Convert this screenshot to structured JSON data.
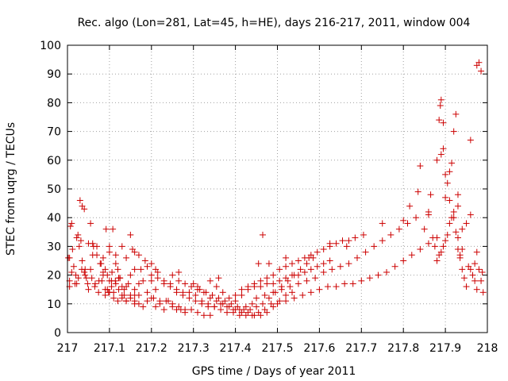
{
  "chart_data": {
    "type": "scatter",
    "title": "Rec. algo (Lon=281, Lat=45, h=HE), days 216-217, 2011, window 004",
    "xlabel": "GPS time / Days of year 2011",
    "ylabel": "STEC from uqrg / TECUs",
    "xlim": [
      217,
      218
    ],
    "ylim": [
      0,
      100
    ],
    "xticks": [
      217,
      217.1,
      217.2,
      217.3,
      217.4,
      217.5,
      217.6,
      217.7,
      217.8,
      217.9,
      218
    ],
    "xtick_labels": [
      "217",
      "217.1",
      "217.2",
      "217.3",
      "217.4",
      "217.5",
      "217.6",
      "217.7",
      "217.8",
      "217.9",
      "218"
    ],
    "yticks": [
      0,
      10,
      20,
      30,
      40,
      50,
      60,
      70,
      80,
      90,
      100
    ],
    "ytick_labels": [
      "0",
      "10",
      "20",
      "30",
      "40",
      "50",
      "60",
      "70",
      "80",
      "90",
      "100"
    ],
    "grid": true,
    "marker": "+",
    "point_color": "#cc0000",
    "series": [
      {
        "x": [
          217.005,
          217.005,
          217.005,
          217.007,
          217.01,
          217.012,
          217.015,
          217.02,
          217.022,
          217.025,
          217.03,
          217.032,
          217.035,
          217.04,
          217.042,
          217.045,
          217.05,
          217.055,
          217.06,
          217.065,
          217.07,
          217.075,
          217.022,
          217.028,
          217.035,
          217.04,
          217.048,
          217.055,
          217.062,
          217.07,
          217.078,
          217.085,
          217.092,
          217.1,
          217.108,
          217.115,
          217.122,
          217.13,
          217.14,
          217.15,
          217.16,
          217.17,
          217.002,
          217.01,
          217.018,
          217.026,
          217.034,
          217.042,
          217.05,
          217.058,
          217.066,
          217.074,
          217.082,
          217.09,
          217.098,
          217.106,
          217.114,
          217.122,
          217.13,
          217.14,
          217.15,
          217.16,
          217.08,
          217.085,
          217.09,
          217.095,
          217.1,
          217.105,
          217.11,
          217.115,
          217.12,
          217.125,
          217.13,
          217.135,
          217.14,
          217.15,
          217.16,
          217.17,
          217.18,
          217.19,
          217.2,
          217.21,
          217.09,
          217.1,
          217.11,
          217.12,
          217.13,
          217.14,
          217.15,
          217.16,
          217.17,
          217.18,
          217.19,
          217.2,
          217.21,
          217.22,
          217.23,
          217.24,
          217.25,
          217.26,
          217.27,
          217.28,
          217.085,
          217.095,
          217.105,
          217.115,
          217.125,
          217.135,
          217.145,
          217.16,
          217.175,
          217.19,
          217.205,
          217.22,
          217.235,
          217.25,
          217.265,
          217.28,
          217.295,
          217.31,
          217.325,
          217.34,
          217.155,
          217.17,
          217.185,
          217.2,
          217.215,
          217.23,
          217.245,
          217.26,
          217.275,
          217.29,
          217.305,
          217.32,
          217.335,
          217.35,
          217.365,
          217.38,
          217.395,
          217.41,
          217.425,
          217.44,
          217.2,
          217.215,
          217.23,
          217.245,
          217.26,
          217.275,
          217.29,
          217.305,
          217.32,
          217.335,
          217.35,
          217.365,
          217.38,
          217.395,
          217.41,
          217.425,
          217.44,
          217.455,
          217.47,
          217.485,
          217.25,
          217.265,
          217.28,
          217.295,
          217.31,
          217.325,
          217.34,
          217.355,
          217.37,
          217.385,
          217.4,
          217.415,
          217.43,
          217.445,
          217.46,
          217.475,
          217.49,
          217.505,
          217.52,
          217.535,
          217.3,
          217.315,
          217.33,
          217.345,
          217.36,
          217.375,
          217.39,
          217.405,
          217.42,
          217.435,
          217.45,
          217.465,
          217.48,
          217.495,
          217.51,
          217.525,
          217.54,
          217.555,
          217.57,
          217.585,
          217.34,
          217.355,
          217.37,
          217.385,
          217.4,
          217.415,
          217.43,
          217.445,
          217.46,
          217.475,
          217.49,
          217.505,
          217.52,
          217.535,
          217.55,
          217.565,
          217.58,
          217.595,
          217.61,
          217.625,
          217.4,
          217.415,
          217.43,
          217.445,
          217.46,
          217.475,
          217.49,
          217.505,
          217.52,
          217.535,
          217.55,
          217.565,
          217.58,
          217.595,
          217.61,
          217.625,
          217.64,
          217.655,
          217.67,
          217.685,
          217.45,
          217.47,
          217.49,
          217.51,
          217.53,
          217.55,
          217.57,
          217.59,
          217.61,
          217.63,
          217.65,
          217.67,
          217.69,
          217.71,
          217.73,
          217.75,
          217.77,
          217.79,
          217.81,
          217.83,
          217.5,
          217.52,
          217.54,
          217.56,
          217.58,
          217.6,
          217.62,
          217.64,
          217.66,
          217.68,
          217.7,
          217.72,
          217.74,
          217.76,
          217.78,
          217.8,
          217.82,
          217.84,
          217.86,
          217.88,
          217.06,
          217.1,
          217.16,
          217.21,
          217.265,
          217.31,
          217.36,
          217.455,
          217.465,
          217.48,
          217.52,
          217.575,
          217.625,
          217.665,
          217.705,
          217.75,
          217.8,
          217.815,
          217.835,
          217.86,
          217.84,
          217.85,
          217.86,
          217.865,
          217.87,
          217.875,
          217.88,
          217.885,
          217.888,
          217.89,
          217.895,
          217.9,
          217.905,
          217.91,
          217.915,
          217.92,
          217.925,
          217.93,
          217.935,
          217.94,
          217.88,
          217.885,
          217.89,
          217.895,
          217.9,
          217.905,
          217.91,
          217.915,
          217.92,
          217.925,
          217.93,
          217.935,
          217.94,
          217.945,
          217.95,
          217.955,
          217.96,
          217.965,
          217.97,
          217.975,
          217.89,
          217.895,
          217.9,
          217.91,
          217.92,
          217.93,
          217.94,
          217.95,
          217.96,
          217.97,
          217.975,
          217.98,
          217.985,
          217.988,
          217.99,
          217.98,
          217.975,
          217.985,
          217.96,
          217.93
        ],
        "y": [
          16,
          18,
          26,
          37,
          38,
          29,
          23,
          20,
          17,
          34,
          46,
          32,
          44,
          43,
          22,
          19,
          31,
          38,
          27,
          16,
          30,
          18,
          33,
          30,
          25,
          21,
          17,
          22,
          30,
          27,
          24,
          20,
          36,
          28,
          36,
          24,
          19,
          30,
          26,
          34,
          22,
          17,
          26,
          21,
          17,
          19,
          22,
          20,
          15,
          19,
          17,
          14,
          18,
          15,
          14,
          21,
          18,
          15,
          12,
          16,
          13,
          11,
          24,
          26,
          22,
          20,
          18,
          16,
          14,
          17,
          22,
          19,
          16,
          13,
          11,
          20,
          15,
          13,
          18,
          23,
          18,
          15,
          13,
          14,
          12,
          11,
          13,
          11,
          12,
          10,
          10,
          9,
          11,
          12,
          9,
          10,
          8,
          11,
          9,
          8,
          8,
          7,
          21,
          15,
          18,
          27,
          19,
          15,
          17,
          13,
          22,
          14,
          12,
          11,
          11,
          10,
          9,
          8,
          8,
          7,
          6,
          6,
          29,
          27,
          25,
          20,
          19,
          17,
          16,
          14,
          13,
          14,
          13,
          11,
          10,
          9,
          10,
          9,
          8,
          8,
          9,
          10,
          24,
          21,
          18,
          17,
          15,
          14,
          12,
          11,
          10,
          9,
          9,
          8,
          7,
          7,
          6,
          6,
          6,
          7,
          8,
          10,
          20,
          18,
          17,
          16,
          15,
          14,
          12,
          11,
          10,
          9,
          8,
          7,
          7,
          6,
          6,
          7,
          9,
          11,
          13,
          14,
          17,
          15,
          14,
          13,
          12,
          11,
          10,
          9,
          8,
          8,
          9,
          10,
          12,
          14,
          16,
          18,
          20,
          22,
          24,
          26,
          18,
          16,
          14,
          12,
          11,
          13,
          15,
          16,
          16,
          17,
          17,
          18,
          19,
          20,
          20,
          21,
          22,
          23,
          24,
          25,
          13,
          15,
          16,
          17,
          18,
          19,
          20,
          22,
          23,
          24,
          25,
          26,
          27,
          28,
          29,
          30,
          31,
          32,
          32,
          33,
          12,
          13,
          14,
          15,
          16,
          17,
          18,
          19,
          21,
          22,
          23,
          24,
          26,
          28,
          30,
          32,
          34,
          36,
          38,
          40,
          10,
          11,
          12,
          13,
          14,
          15,
          16,
          16,
          17,
          17,
          18,
          19,
          20,
          21,
          23,
          25,
          27,
          29,
          31,
          33,
          31,
          30,
          28,
          22,
          21,
          16,
          19,
          24,
          34,
          24,
          26,
          26,
          31,
          30,
          34,
          38,
          39,
          44,
          49,
          42,
          58,
          36,
          41,
          48,
          33,
          30,
          60,
          74,
          79,
          81,
          64,
          47,
          52,
          56,
          59,
          70,
          76,
          48,
          27,
          36,
          25,
          27,
          28,
          30,
          32,
          34,
          38,
          40,
          42,
          35,
          29,
          26,
          22,
          19,
          16,
          23,
          22,
          20,
          18,
          15,
          62,
          73,
          55,
          46,
          40,
          33,
          29,
          38,
          41,
          24,
          28,
          22,
          18,
          21,
          14,
          94,
          93,
          91,
          67,
          44
        ]
      }
    ]
  }
}
